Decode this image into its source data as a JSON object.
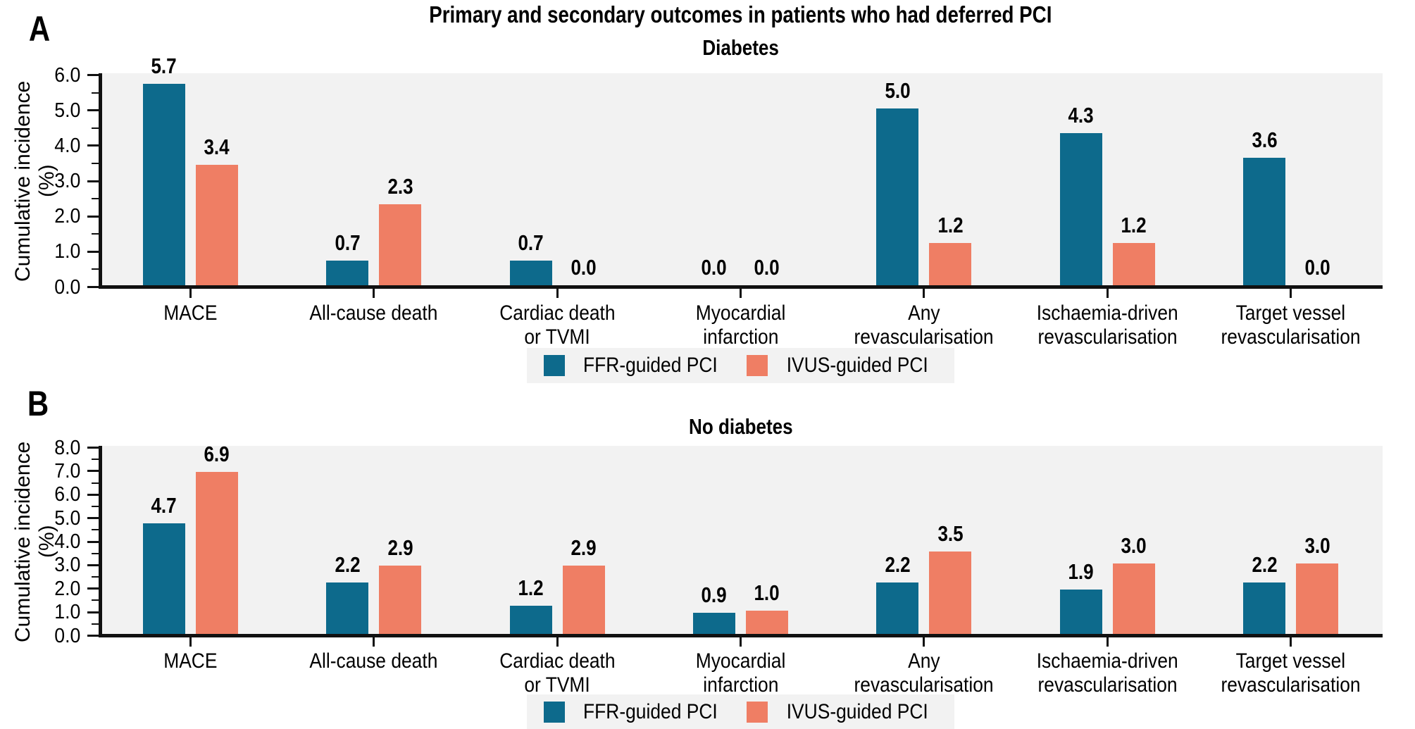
{
  "page_title": "Primary and secondary outcomes in patients who had deferred PCI",
  "colors": {
    "ffr": "#0D6A8C",
    "ivus": "#EF7E64",
    "plot_bg": "#F2F2F2",
    "legend_bg": "#F2F2F2",
    "axis": "#111111"
  },
  "legend": {
    "ffr_label": "FFR-guided PCI",
    "ivus_label": "IVUS-guided PCI"
  },
  "chart_data": [
    {
      "type": "bar",
      "panel_letter": "A",
      "title": "Diabetes",
      "ylabel": "Cumulative incidence (%)",
      "ylim": [
        0,
        6.0
      ],
      "ytick_step": 1.0,
      "minor_tick_step": 0.5,
      "ytick_labels": [
        "0.0",
        "1.0",
        "2.0",
        "3.0",
        "4.0",
        "5.0",
        "6.0"
      ],
      "grid": false,
      "bar_labels": true,
      "legend_position": "bottom-center",
      "categories": [
        "MACE",
        "All-cause death",
        "Cardiac death or TVMI",
        "Myocardial infarction",
        "Any revascularisation",
        "Ischaemia-driven revascularisation",
        "Target vessel revascularisation"
      ],
      "category_lines": [
        [
          "MACE"
        ],
        [
          "All-cause death"
        ],
        [
          "Cardiac death",
          "or TVMI"
        ],
        [
          "Myocardial",
          "infarction"
        ],
        [
          "Any",
          "revascularisation"
        ],
        [
          "Ischaemia-driven",
          "revascularisation"
        ],
        [
          "Target vessel",
          "revascularisation"
        ]
      ],
      "series": [
        {
          "name": "FFR-guided PCI",
          "color": "#0D6A8C",
          "values": [
            5.7,
            0.7,
            0.7,
            0.0,
            5.0,
            4.3,
            3.6
          ]
        },
        {
          "name": "IVUS-guided PCI",
          "color": "#EF7E64",
          "values": [
            3.4,
            2.3,
            0.0,
            0.0,
            1.2,
            1.2,
            0.0
          ]
        }
      ]
    },
    {
      "type": "bar",
      "panel_letter": "B",
      "title": "No diabetes",
      "ylabel": "Cumulative incidence (%)",
      "ylim": [
        0,
        8.0
      ],
      "ytick_step": 1.0,
      "minor_tick_step": 0.5,
      "ytick_labels": [
        "0.0",
        "1.0",
        "2.0",
        "3.0",
        "4.0",
        "5.0",
        "6.0",
        "7.0",
        "8.0"
      ],
      "grid": false,
      "bar_labels": true,
      "legend_position": "bottom-center",
      "categories": [
        "MACE",
        "All-cause death",
        "Cardiac death or TVMI",
        "Myocardial infarction",
        "Any revascularisation",
        "Ischaemia-driven revascularisation",
        "Target vessel revascularisation"
      ],
      "category_lines": [
        [
          "MACE"
        ],
        [
          "All-cause death"
        ],
        [
          "Cardiac death",
          "or TVMI"
        ],
        [
          "Myocardial",
          "infarction"
        ],
        [
          "Any",
          "revascularisation"
        ],
        [
          "Ischaemia-driven",
          "revascularisation"
        ],
        [
          "Target vessel",
          "revascularisation"
        ]
      ],
      "series": [
        {
          "name": "FFR-guided PCI",
          "color": "#0D6A8C",
          "values": [
            4.7,
            2.2,
            1.2,
            0.9,
            2.2,
            1.9,
            2.2
          ]
        },
        {
          "name": "IVUS-guided PCI",
          "color": "#EF7E64",
          "values": [
            6.9,
            2.9,
            2.9,
            1.0,
            3.5,
            3.0,
            3.0
          ]
        }
      ]
    }
  ]
}
